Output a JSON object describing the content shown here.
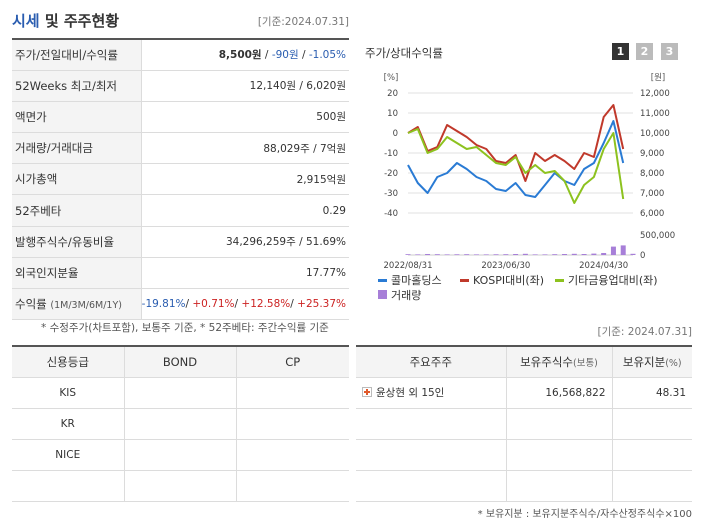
{
  "header": {
    "title_blue": "시세",
    "title_rest": " 및 주주현황",
    "asof": "[기준:2024.07.31]"
  },
  "summary": {
    "rows": [
      {
        "label": "주가/전일대비/수익률"
      },
      {
        "label": "52Weeks 최고/최저",
        "value": "12,140원 / 6,020원"
      },
      {
        "label": "액면가",
        "value": "500원"
      },
      {
        "label": "거래량/거래대금",
        "value": "88,029주 / 7억원"
      },
      {
        "label": "시가총액",
        "value": "2,915억원"
      },
      {
        "label": "52주베타",
        "value": "0.29"
      },
      {
        "label": "발행주식수/유동비율",
        "value": "34,296,259주 / 51.69%"
      },
      {
        "label": "외국인지분율",
        "value": "17.77%"
      },
      {
        "label": "수익률",
        "label_small": "(1M/3M/6M/1Y)"
      }
    ],
    "price": "8,500원",
    "change": "-90원",
    "change_pct": "-1.05%",
    "returns": [
      "-19.81%",
      "+0.71%",
      "+12.58%",
      "+25.37%"
    ],
    "note": "* 수정주가(차트포함), 보통주 기준, * 52주베타: 주간수익률 기준"
  },
  "chart_panel": {
    "title": "주가/상대수익률",
    "pages": [
      "1",
      "2",
      "3"
    ],
    "colors": {
      "stock": "#2a7bd4",
      "kospi": "#c0392b",
      "sector": "#8dc21f",
      "volume": "#a77fd8"
    },
    "asof": "[기준: 2024.07.31]"
  },
  "chart_data": {
    "type": "line",
    "left_axis_unit": "[%]",
    "right_axis_unit": "[원]",
    "left_ticks": [
      "20",
      "10",
      "0",
      "-10",
      "-20",
      "-30",
      "-40"
    ],
    "right_ticks": [
      "12,000",
      "11,000",
      "10,000",
      "9,000",
      "8,000",
      "7,000",
      "6,000"
    ],
    "volume_ticks": [
      "500,000",
      "0"
    ],
    "ylim_left": [
      -40,
      20
    ],
    "x_ticks": [
      "2022/08/31",
      "2023/06/30",
      "2024/04/30"
    ],
    "x": [
      "2022/08",
      "2022/09",
      "2022/10",
      "2022/11",
      "2022/12",
      "2023/01",
      "2023/02",
      "2023/03",
      "2023/04",
      "2023/05",
      "2023/06",
      "2023/07",
      "2023/08",
      "2023/09",
      "2023/10",
      "2023/11",
      "2023/12",
      "2024/01",
      "2024/02",
      "2024/03",
      "2024/04",
      "2024/05",
      "2024/06",
      "2024/07"
    ],
    "series": [
      {
        "name": "콜마홀딩스",
        "values": [
          -16,
          -25,
          -30,
          -22,
          -20,
          -15,
          -18,
          -22,
          -24,
          -28,
          -29,
          -25,
          -31,
          -32,
          -26,
          -20,
          -24,
          -26,
          -18,
          -15,
          -5,
          6,
          -15,
          null
        ]
      },
      {
        "name": "KOSPI대비(좌)",
        "values": [
          0,
          3,
          -9,
          -7,
          4,
          1,
          -2,
          -6,
          -8,
          -14,
          -15,
          -11,
          -24,
          -10,
          -14,
          -11,
          -14,
          -18,
          -10,
          -12,
          8,
          14,
          -8,
          null
        ]
      },
      {
        "name": "기타금융업대비(좌)",
        "values": [
          0,
          2,
          -10,
          -8,
          -2,
          -5,
          -8,
          -7,
          -11,
          -15,
          -16,
          -12,
          -20,
          -16,
          -20,
          -19,
          -24,
          -35,
          -26,
          -22,
          -8,
          0,
          -33,
          null
        ]
      }
    ],
    "volume_series": {
      "name": "거래량",
      "values": [
        20,
        15,
        25,
        20,
        15,
        18,
        20,
        15,
        15,
        18,
        20,
        25,
        30,
        15,
        15,
        20,
        25,
        30,
        25,
        35,
        50,
        210,
        240,
        30
      ]
    },
    "legend_placement": "bottom"
  },
  "credit": {
    "headers": [
      "신용등급",
      "BOND",
      "CP"
    ],
    "agencies": [
      "KIS",
      "KR",
      "NICE",
      ""
    ]
  },
  "holders": {
    "headers": [
      "주요주주",
      "보유주식수",
      "(보통)",
      "보유지분",
      "(%)"
    ],
    "rows": [
      {
        "name": "윤상현 외 15인",
        "shares": "16,568,822",
        "pct": "48.31"
      }
    ],
    "note": "* 보유지분 : 보유지분주식수/자수산정주식수×100"
  }
}
